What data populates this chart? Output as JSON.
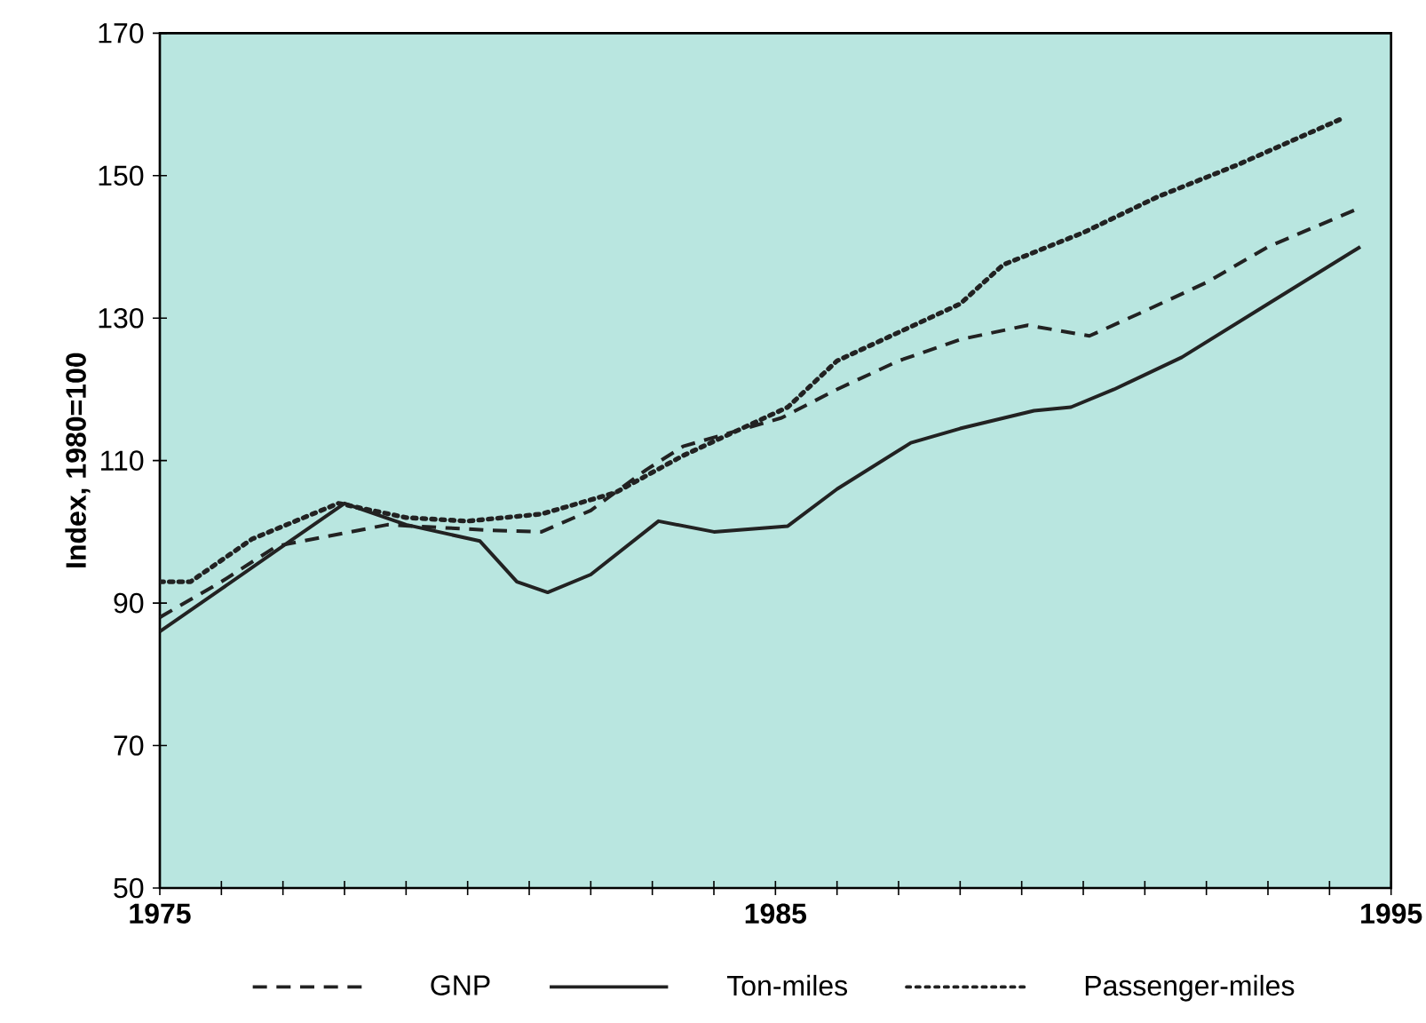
{
  "chart_data": {
    "type": "line",
    "ylabel": "Index, 1980=100",
    "xlim": [
      1975,
      1995
    ],
    "ylim": [
      50,
      170
    ],
    "xticks": [
      1975,
      {
        "value": 1976,
        "label": null
      },
      {
        "value": 1977,
        "label": null
      },
      {
        "value": 1978,
        "label": null
      },
      {
        "value": 1979,
        "label": null
      },
      {
        "value": 1980,
        "label": null
      },
      {
        "value": 1981,
        "label": null
      },
      {
        "value": 1982,
        "label": null
      },
      {
        "value": 1983,
        "label": null
      },
      {
        "value": 1984,
        "label": null
      },
      1985,
      {
        "value": 1986,
        "label": null
      },
      {
        "value": 1987,
        "label": null
      },
      {
        "value": 1988,
        "label": null
      },
      {
        "value": 1989,
        "label": null
      },
      {
        "value": 1990,
        "label": null
      },
      {
        "value": 1991,
        "label": null
      },
      {
        "value": 1992,
        "label": null
      },
      {
        "value": 1993,
        "label": null
      },
      {
        "value": 1994,
        "label": null
      },
      1995
    ],
    "yticks": [
      50,
      70,
      90,
      110,
      130,
      150,
      170
    ],
    "legend": "bottom",
    "marker": "none",
    "grid": false,
    "series": [
      {
        "name": "GNP",
        "color": "#222222",
        "line_style": "dashed",
        "x": [
          1975,
          1976,
          1976.9,
          1978.7,
          1980.4,
          1981.2,
          1982,
          1982.9,
          1983.5,
          1985.1,
          1986,
          1987,
          1988,
          1989.1,
          1990.1,
          1991,
          1992,
          1993,
          1994.5
        ],
        "values": [
          88,
          93,
          98,
          101,
          100.2,
          100,
          103,
          108.7,
          112,
          116,
          120,
          124,
          127,
          129,
          127.5,
          131,
          135,
          140,
          145.5
        ]
      },
      {
        "name": "Ton-miles",
        "color": "#222222",
        "line_style": "solid",
        "x": [
          1975,
          1976,
          1977,
          1978,
          1979,
          1980.2,
          1980.8,
          1981.3,
          1982,
          1983.1,
          1984,
          1985.2,
          1986,
          1987.2,
          1988,
          1989.2,
          1989.8,
          1990.5,
          1991.6,
          1993,
          1994.5
        ],
        "values": [
          86,
          92,
          98,
          104,
          101,
          98.7,
          93,
          91.5,
          94,
          101.5,
          100,
          100.8,
          106,
          112.5,
          114.5,
          117,
          117.5,
          120,
          124.5,
          132,
          140
        ]
      },
      {
        "name": "Passenger-miles",
        "color": "#222222",
        "line_style": "dotted",
        "x": [
          1975,
          1975.5,
          1976.5,
          1977.9,
          1979,
          1980,
          1981.2,
          1982.4,
          1983.5,
          1985.2,
          1986,
          1987,
          1988,
          1988.7,
          1990,
          1991.2,
          1992.5,
          1994.2
        ],
        "values": [
          93,
          93,
          99,
          104,
          102,
          101.5,
          102.5,
          105.5,
          110.7,
          117.5,
          124,
          128,
          132,
          137.5,
          142,
          147,
          151.5,
          158
        ]
      }
    ]
  }
}
